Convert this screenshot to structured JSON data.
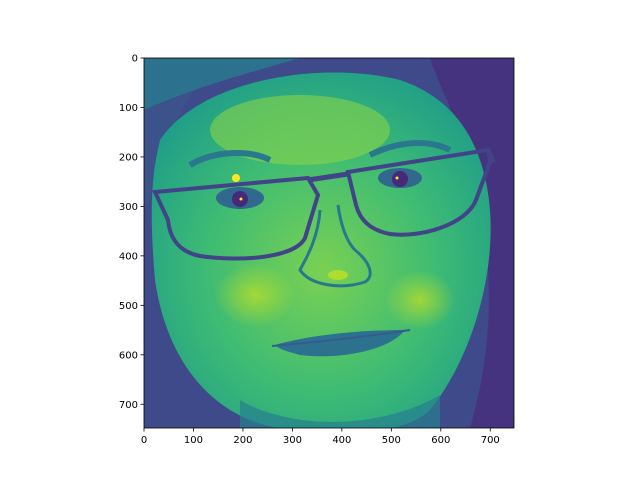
{
  "chart_data": {
    "type": "heatmap",
    "colormap": "viridis",
    "title": "",
    "xlabel": "",
    "ylabel": "",
    "xlim": [
      0,
      748
    ],
    "ylim": [
      748,
      0
    ],
    "x_ticks": [
      0,
      100,
      200,
      300,
      400,
      500,
      600,
      700
    ],
    "y_ticks": [
      0,
      100,
      200,
      300,
      400,
      500,
      600,
      700
    ],
    "image": {
      "subject": "grayscale face portrait (woman with dark rectangular glasses) rendered with a viridis colormap",
      "rows": 748,
      "cols": 748
    },
    "colors": {
      "background": "#46327e",
      "dark": "#3b528b",
      "mid": "#21918c",
      "bright": "#5ec962",
      "highlight": "#b5de2b",
      "peak": "#fde725",
      "edge": "#440154"
    }
  }
}
